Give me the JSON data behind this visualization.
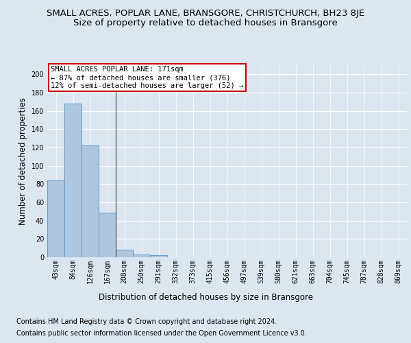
{
  "title": "SMALL ACRES, POPLAR LANE, BRANSGORE, CHRISTCHURCH, BH23 8JE",
  "subtitle": "Size of property relative to detached houses in Bransgore",
  "xlabel": "Distribution of detached houses by size in Bransgore",
  "ylabel": "Number of detached properties",
  "categories": [
    "43sqm",
    "84sqm",
    "126sqm",
    "167sqm",
    "208sqm",
    "250sqm",
    "291sqm",
    "332sqm",
    "373sqm",
    "415sqm",
    "456sqm",
    "497sqm",
    "539sqm",
    "580sqm",
    "621sqm",
    "663sqm",
    "704sqm",
    "745sqm",
    "787sqm",
    "828sqm",
    "869sqm"
  ],
  "values": [
    84,
    168,
    122,
    49,
    8,
    3,
    2,
    0,
    0,
    0,
    0,
    0,
    0,
    0,
    0,
    0,
    0,
    0,
    0,
    0,
    0
  ],
  "bar_color": "#aec6de",
  "bar_edge_color": "#5b9bd5",
  "annotation_text": "SMALL ACRES POPLAR LANE: 171sqm\n← 87% of detached houses are smaller (376)\n12% of semi-detached houses are larger (52) →",
  "annotation_box_color": "#ffffff",
  "annotation_box_edge_color": "#cc0000",
  "ylim": [
    0,
    210
  ],
  "yticks": [
    0,
    20,
    40,
    60,
    80,
    100,
    120,
    140,
    160,
    180,
    200
  ],
  "footer1": "Contains HM Land Registry data © Crown copyright and database right 2024.",
  "footer2": "Contains public sector information licensed under the Open Government Licence v3.0.",
  "bg_color": "#dce6f0",
  "plot_bg_color": "#dce6f0",
  "grid_color": "#ffffff",
  "title_fontsize": 9.5,
  "subtitle_fontsize": 9.5,
  "label_fontsize": 8.5,
  "tick_fontsize": 7,
  "footer_fontsize": 7,
  "vline_x": 3.5,
  "vline_color": "#555555"
}
